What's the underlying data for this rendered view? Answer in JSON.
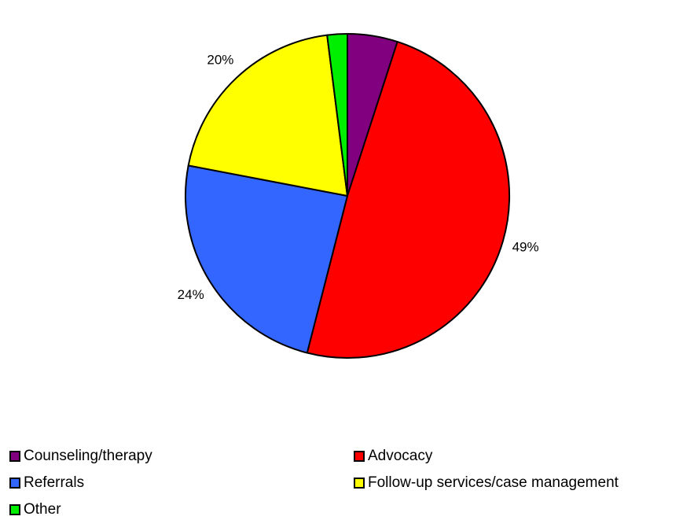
{
  "chart_data": {
    "type": "pie",
    "title": "",
    "slices": [
      {
        "label": "Counseling/therapy",
        "value": 5,
        "display": "5%",
        "color": "#800080"
      },
      {
        "label": "Advocacy",
        "value": 49,
        "display": "49%",
        "color": "#FF0000"
      },
      {
        "label": "Referrals",
        "value": 24,
        "display": "24%",
        "color": "#3366FF"
      },
      {
        "label": "Follow-up services/case management",
        "value": 20,
        "display": "20%",
        "color": "#FFFF00"
      },
      {
        "label": "Other",
        "value": 2,
        "display": "2%",
        "color": "#00EE00"
      }
    ],
    "legend_position": "bottom",
    "start_angle": "12 o'clock",
    "direction": "clockwise",
    "draw_order": [
      0,
      1,
      2,
      3,
      4
    ]
  },
  "legend": {
    "items": [
      {
        "label": "Counseling/therapy",
        "color": "#800080"
      },
      {
        "label": "Advocacy",
        "color": "#FF0000"
      },
      {
        "label": "Referrals",
        "color": "#3366FF"
      },
      {
        "label": "Follow-up services/case management",
        "color": "#FFFF00"
      },
      {
        "label": "Other",
        "color": "#00EE00"
      }
    ]
  }
}
